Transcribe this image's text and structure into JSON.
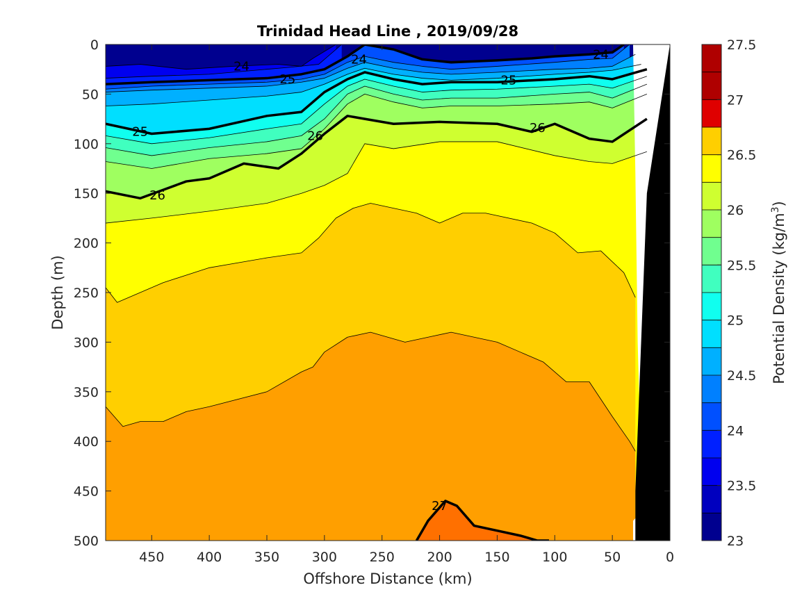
{
  "chart_data": {
    "type": "filled-contour",
    "title": "Trinidad Head Line , 2019/09/28",
    "xlabel": "Offshore Distance (km)",
    "ylabel": "Depth (m)",
    "xlim": [
      490,
      0
    ],
    "ylim": [
      0,
      500
    ],
    "x_ticks": [
      "450",
      "400",
      "350",
      "300",
      "250",
      "200",
      "150",
      "100",
      "50",
      "0"
    ],
    "y_ticks": [
      "0",
      "50",
      "100",
      "150",
      "200",
      "250",
      "300",
      "350",
      "400",
      "450",
      "500"
    ],
    "colorbar": {
      "label_main": "Potential Density (kg/m",
      "label_sup": "3",
      "label_close": ")",
      "range": [
        23,
        27.5
      ],
      "ticks": [
        "23",
        "23.5",
        "24",
        "24.5",
        "25",
        "25.5",
        "26",
        "26.5",
        "27",
        "27.5"
      ],
      "level_step": 0.25,
      "colors": [
        "#00008f",
        "#0000bf",
        "#0000ef",
        "#0020ff",
        "#0050ff",
        "#0080ff",
        "#00b0ff",
        "#00dfff",
        "#10ffef",
        "#40ffbf",
        "#70ff8f",
        "#9fff60",
        "#cfff30",
        "#ffff00",
        "#ffcf00",
        "#ff9f00",
        "#ff7000",
        "#ff4000",
        "#ff1000",
        "#df0000",
        "#af0000"
      ]
    },
    "isopycnals_km_depth": [
      {
        "sigma": 23.5,
        "x": [
          490,
          460,
          420,
          380,
          340,
          320,
          310,
          290
        ],
        "y": [
          22,
          20,
          25,
          22,
          20,
          22,
          14,
          0
        ]
      },
      {
        "sigma": 23.75,
        "x": [
          490,
          450,
          400,
          350,
          330,
          305,
          285
        ],
        "y": [
          34,
          32,
          30,
          25,
          23,
          20,
          0
        ]
      },
      {
        "sigma": 24.0,
        "x": [
          490,
          450,
          400,
          350,
          320,
          300,
          280,
          265,
          240,
          215,
          190,
          150,
          120,
          100,
          70,
          50,
          40
        ],
        "y": [
          40,
          38,
          36,
          34,
          30,
          25,
          12,
          0,
          5,
          15,
          18,
          16,
          14,
          12,
          10,
          8,
          0
        ]
      },
      {
        "sigma": 24.25,
        "x": [
          490,
          450,
          400,
          350,
          320,
          300,
          280,
          265,
          240,
          215,
          190,
          150,
          100,
          70,
          50,
          35
        ],
        "y": [
          45,
          42,
          40,
          38,
          35,
          30,
          18,
          12,
          18,
          22,
          25,
          22,
          18,
          15,
          14,
          0
        ]
      },
      {
        "sigma": 24.5,
        "x": [
          490,
          450,
          400,
          350,
          320,
          300,
          280,
          265,
          240,
          215,
          190,
          150,
          100,
          70,
          50,
          30
        ],
        "y": [
          48,
          46,
          44,
          42,
          38,
          34,
          24,
          18,
          24,
          28,
          30,
          28,
          25,
          24,
          22,
          10
        ]
      },
      {
        "sigma": 24.75,
        "x": [
          490,
          450,
          400,
          350,
          320,
          300,
          280,
          265,
          240,
          215,
          190,
          150,
          100,
          70,
          50,
          25
        ],
        "y": [
          62,
          60,
          56,
          52,
          48,
          40,
          30,
          24,
          30,
          34,
          36,
          34,
          30,
          28,
          26,
          20
        ]
      },
      {
        "sigma": 25.0,
        "x": [
          490,
          450,
          400,
          350,
          320,
          300,
          280,
          265,
          240,
          215,
          190,
          150,
          100,
          70,
          50,
          20
        ],
        "y": [
          80,
          90,
          85,
          72,
          68,
          48,
          35,
          28,
          35,
          40,
          38,
          38,
          35,
          32,
          35,
          25
        ]
      },
      {
        "sigma": 25.25,
        "x": [
          490,
          450,
          400,
          350,
          320,
          300,
          280,
          265,
          240,
          215,
          190,
          150,
          100,
          70,
          50,
          20
        ],
        "y": [
          92,
          100,
          94,
          85,
          80,
          60,
          42,
          35,
          42,
          48,
          46,
          45,
          42,
          40,
          44,
          32
        ]
      },
      {
        "sigma": 25.5,
        "x": [
          490,
          450,
          400,
          350,
          320,
          300,
          280,
          265,
          240,
          215,
          190,
          150,
          100,
          70,
          50,
          20
        ],
        "y": [
          104,
          112,
          104,
          98,
          92,
          75,
          50,
          42,
          50,
          56,
          54,
          54,
          50,
          48,
          54,
          40
        ]
      },
      {
        "sigma": 25.75,
        "x": [
          490,
          450,
          400,
          350,
          320,
          300,
          280,
          265,
          240,
          215,
          190,
          150,
          100,
          70,
          50,
          20
        ],
        "y": [
          118,
          125,
          115,
          110,
          105,
          85,
          60,
          50,
          58,
          64,
          62,
          62,
          60,
          58,
          64,
          50
        ]
      },
      {
        "sigma": 26.0,
        "x": [
          490,
          460,
          420,
          400,
          370,
          340,
          320,
          300,
          280,
          265,
          240,
          200,
          150,
          120,
          100,
          70,
          50,
          20
        ],
        "y": [
          148,
          155,
          138,
          135,
          120,
          125,
          110,
          90,
          72,
          75,
          80,
          78,
          80,
          88,
          80,
          95,
          98,
          75
        ]
      },
      {
        "sigma": 26.25,
        "x": [
          490,
          450,
          400,
          350,
          320,
          300,
          280,
          265,
          240,
          200,
          150,
          100,
          70,
          50,
          20
        ],
        "y": [
          180,
          175,
          168,
          160,
          150,
          142,
          130,
          100,
          105,
          98,
          98,
          112,
          118,
          120,
          108
        ]
      },
      {
        "sigma": 26.5,
        "x": [
          490,
          480,
          460,
          440,
          400,
          350,
          320,
          305,
          290,
          275,
          260,
          220,
          200,
          180,
          160,
          120,
          100,
          80,
          60,
          40,
          30
        ],
        "y": [
          245,
          260,
          250,
          240,
          225,
          215,
          210,
          195,
          175,
          165,
          160,
          170,
          180,
          170,
          170,
          180,
          190,
          210,
          208,
          230,
          255
        ]
      },
      {
        "sigma": 26.75,
        "x": [
          490,
          475,
          460,
          440,
          420,
          400,
          350,
          320,
          310,
          300,
          280,
          260,
          230,
          210,
          190,
          150,
          130,
          110,
          90,
          70,
          50,
          35,
          30
        ],
        "y": [
          365,
          385,
          380,
          380,
          370,
          365,
          350,
          330,
          325,
          310,
          295,
          290,
          300,
          295,
          290,
          300,
          310,
          320,
          340,
          340,
          375,
          400,
          410
        ]
      },
      {
        "sigma": 27.0,
        "x": [
          220,
          210,
          195,
          185,
          170,
          150,
          130,
          115,
          105
        ],
        "y": [
          500,
          480,
          460,
          465,
          485,
          490,
          495,
          500,
          500
        ]
      }
    ],
    "contour_labels": [
      {
        "text": "24",
        "x": 372,
        "y": 22
      },
      {
        "text": "24",
        "x": 270,
        "y": 15
      },
      {
        "text": "24",
        "x": 60,
        "y": 10
      },
      {
        "text": "25",
        "x": 332,
        "y": 35
      },
      {
        "text": "25",
        "x": 140,
        "y": 36
      },
      {
        "text": "25",
        "x": 460,
        "y": 88
      },
      {
        "text": "26",
        "x": 308,
        "y": 92
      },
      {
        "text": "26",
        "x": 115,
        "y": 84
      },
      {
        "text": "26",
        "x": 445,
        "y": 152
      },
      {
        "text": "27",
        "x": 200,
        "y": 465
      }
    ],
    "bathymetry": {
      "color": "#000000",
      "x": [
        0,
        20,
        25,
        30,
        30
      ],
      "y": [
        0,
        150,
        300,
        450,
        500
      ]
    },
    "white_gap": {
      "color": "#ffffff"
    }
  }
}
